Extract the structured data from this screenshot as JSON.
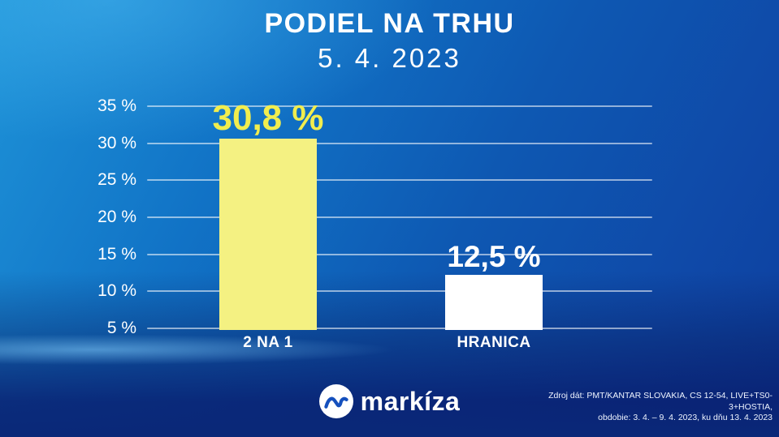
{
  "header": {
    "title": "PODIEL NA TRHU",
    "subtitle": "5. 4. 2023"
  },
  "chart_data": {
    "type": "bar",
    "title": "PODIEL NA TRHU",
    "subtitle": "5. 4. 2023",
    "categories": [
      "2 NA 1",
      "HRANICA"
    ],
    "values": [
      30.8,
      12.5
    ],
    "value_labels": [
      "30,8 %",
      "12,5 %"
    ],
    "bar_colors": [
      "#f4f182",
      "#ffffff"
    ],
    "value_label_colors": [
      "#f1ed4e",
      "#ffffff"
    ],
    "ylim": [
      5,
      35
    ],
    "baseline_value": 5,
    "yticks": [
      5,
      10,
      15,
      20,
      25,
      30,
      35
    ],
    "ytick_labels": [
      "5 %",
      "10 %",
      "15 %",
      "20 %",
      "25 %",
      "30 %",
      "35 %"
    ],
    "grid": true,
    "legend": "none",
    "gridline_color": "rgba(255,255,255,0.55)"
  },
  "footer": {
    "logo_text": "markíza",
    "logo_icon": "markiza-wave-icon",
    "source_lines": [
      "Zdroj dát: PMT/KANTAR SLOVAKIA, CS 12-54, LIVE+TS0-3+HOSTIA,",
      "obdobie: 3. 4. – 9. 4. 2023, ku dňu 13. 4. 2023"
    ]
  },
  "colors": {
    "background_top_left": "#1e93d8",
    "background_right": "#0f49a8",
    "background_bottom": "#0a2878",
    "logo_mark_blue": "#1550bd",
    "text": "#ffffff"
  }
}
